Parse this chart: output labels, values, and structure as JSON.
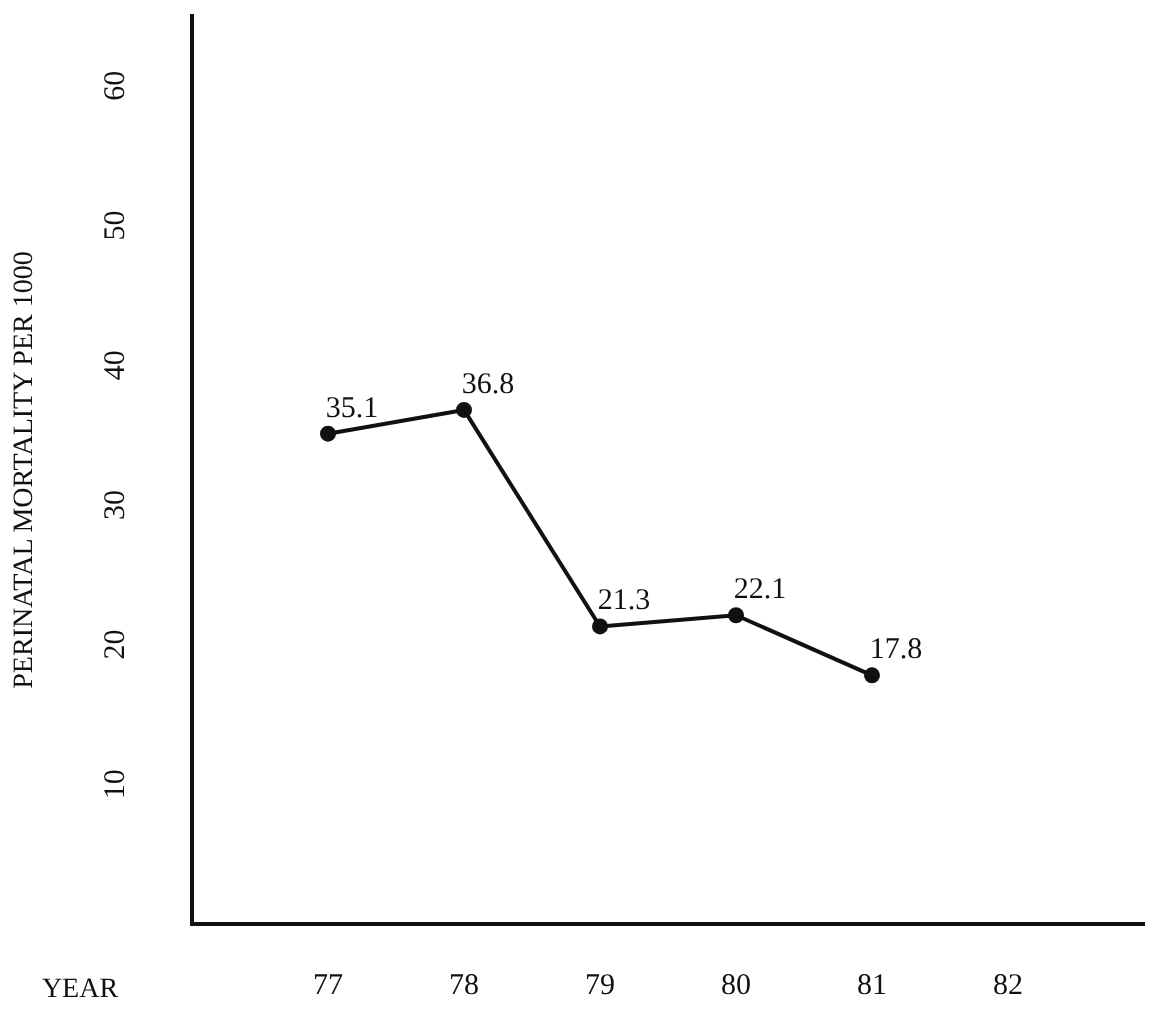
{
  "chart_data": {
    "type": "line",
    "xlabel": "YEAR",
    "ylabel": "PERINATAL MORTALITY PER 1000",
    "x": [
      77,
      78,
      79,
      80,
      81
    ],
    "series": [
      {
        "color": "#111111",
        "values": [
          35.1,
          36.8,
          21.3,
          22.1,
          17.8
        ]
      }
    ],
    "xlim": [
      76,
      83
    ],
    "xticks": [
      77,
      78,
      79,
      80,
      81,
      82
    ],
    "ylim": [
      0,
      65
    ],
    "yticks": [
      10,
      20,
      30,
      40,
      50,
      60
    ],
    "data_labels": true,
    "marker": "circle",
    "line_style": "solid"
  }
}
